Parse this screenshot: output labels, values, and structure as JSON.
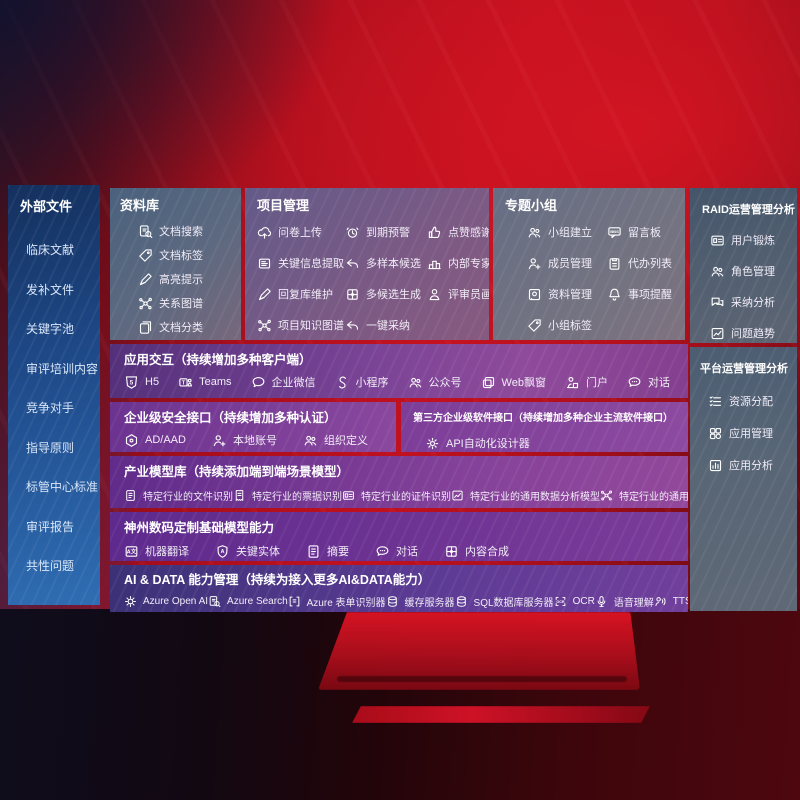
{
  "colors": {
    "accent_red": "#c11120",
    "panel_purple": "#7a4496",
    "panel_slate": "#536071",
    "sidebar_blue": "#1f4b8b",
    "row_indigo": "#3b3177"
  },
  "sidebar": {
    "title": "外部文件",
    "items": [
      {
        "label": "临床文献"
      },
      {
        "label": "发补文件"
      },
      {
        "label": "关键字池"
      },
      {
        "label": "审评培训内容"
      },
      {
        "label": "竞争对手"
      },
      {
        "label": "指导原则"
      },
      {
        "label": "标管中心标准"
      },
      {
        "label": "审评报告"
      },
      {
        "label": "共性问题"
      }
    ]
  },
  "top_panels": [
    {
      "title": "资料库",
      "items": [
        {
          "icon": "doc-search",
          "label": "文档搜索"
        },
        {
          "icon": "tag",
          "label": "文档标签"
        },
        {
          "icon": "pen",
          "label": "高亮提示"
        },
        {
          "icon": "graph",
          "label": "关系图谱"
        },
        {
          "icon": "docs",
          "label": "文档分类"
        }
      ]
    },
    {
      "title": "项目管理",
      "items": [
        {
          "icon": "cloud-up",
          "label": "问卷上传"
        },
        {
          "icon": "alarm",
          "label": "到期预警"
        },
        {
          "icon": "thumb",
          "label": "点赞感谢"
        },
        {
          "icon": "extract",
          "label": "关键信息提取"
        },
        {
          "icon": "reply",
          "label": "多样本候选"
        },
        {
          "icon": "rank",
          "label": "内部专家排名"
        },
        {
          "icon": "pen",
          "label": "回复库维护"
        },
        {
          "icon": "puzzle",
          "label": "多候选生成"
        },
        {
          "icon": "person",
          "label": "评审员画像"
        },
        {
          "icon": "graph",
          "label": "项目知识图谱"
        },
        {
          "icon": "reply",
          "label": "一键采纳"
        }
      ]
    },
    {
      "title": "专题小组",
      "items": [
        {
          "icon": "people",
          "label": "小组建立"
        },
        {
          "icon": "bbs",
          "label": "留言板"
        },
        {
          "icon": "account",
          "label": "成员管理"
        },
        {
          "icon": "clipboard",
          "label": "代办列表"
        },
        {
          "icon": "album",
          "label": "资料管理"
        },
        {
          "icon": "bell",
          "label": "事项提醒"
        },
        {
          "icon": "tag",
          "label": "小组标签"
        }
      ]
    }
  ],
  "right_panels": [
    {
      "title": "RAID运营管理分析",
      "items": [
        {
          "icon": "idcard",
          "label": "用户锻炼"
        },
        {
          "icon": "people",
          "label": "角色管理"
        },
        {
          "icon": "chat2",
          "label": "采纳分析"
        },
        {
          "icon": "trend",
          "label": "问题趋势"
        }
      ]
    },
    {
      "title": "平台运营管理分析",
      "items": [
        {
          "icon": "list",
          "label": "资源分配"
        },
        {
          "icon": "grid",
          "label": "应用管理"
        },
        {
          "icon": "chart-box",
          "label": "应用分析"
        }
      ]
    }
  ],
  "rows": [
    {
      "title": "应用交互（持续增加多种客户端）",
      "items": [
        {
          "icon": "h5",
          "label": "H5"
        },
        {
          "icon": "teams",
          "label": "Teams"
        },
        {
          "icon": "bubble",
          "label": "企业微信"
        },
        {
          "icon": "scurve",
          "label": "小程序"
        },
        {
          "icon": "people",
          "label": "公众号"
        },
        {
          "icon": "window",
          "label": "Web飘窗"
        },
        {
          "icon": "portal",
          "label": "门户"
        },
        {
          "icon": "bubble-dots",
          "label": "对话"
        }
      ]
    },
    {
      "title": "企业级安全接口（持续增加多种认证）",
      "items": [
        {
          "icon": "hex",
          "label": "AD/AAD"
        },
        {
          "icon": "account",
          "label": "本地账号"
        },
        {
          "icon": "people",
          "label": "组织定义"
        }
      ]
    },
    {
      "title": "第三方企业级软件接口（持续增加多种企业主流软件接口）",
      "items": [
        {
          "icon": "gear",
          "label": "API自动化设计器"
        }
      ]
    },
    {
      "title": "产业模型库（持续添加端到端场景模型）",
      "items": [
        {
          "icon": "doc",
          "label": "特定行业的文件识别"
        },
        {
          "icon": "receipt",
          "label": "特定行业的票据识别"
        },
        {
          "icon": "idcard",
          "label": "特定行业的证件识别"
        },
        {
          "icon": "trend",
          "label": "特定行业的通用数据分析模型"
        },
        {
          "icon": "graph",
          "label": "特定行业的通用知识图谱模型"
        }
      ]
    },
    {
      "title": "神州数码定制基础模型能力",
      "items": [
        {
          "icon": "translate",
          "label": "机器翻译"
        },
        {
          "icon": "shield-a",
          "label": "关键实体"
        },
        {
          "icon": "doc",
          "label": "摘要"
        },
        {
          "icon": "bubble-dots",
          "label": "对话"
        },
        {
          "icon": "puzzle",
          "label": "内容合成"
        }
      ]
    },
    {
      "title": "AI & DATA 能力管理（持续为接入更多AI&DATA能力）",
      "items": [
        {
          "icon": "openai",
          "label": "Azure Open AI"
        },
        {
          "icon": "doc-search",
          "label": "Azure Search"
        },
        {
          "icon": "bracket-doc",
          "label": "Azure 表单识别器"
        },
        {
          "icon": "db",
          "label": "缓存服务器"
        },
        {
          "icon": "db",
          "label": "SQL数据库服务器"
        },
        {
          "icon": "ocr",
          "label": "OCR"
        },
        {
          "icon": "mic",
          "label": "语音理解"
        },
        {
          "icon": "tts",
          "label": "TTS"
        }
      ]
    }
  ]
}
